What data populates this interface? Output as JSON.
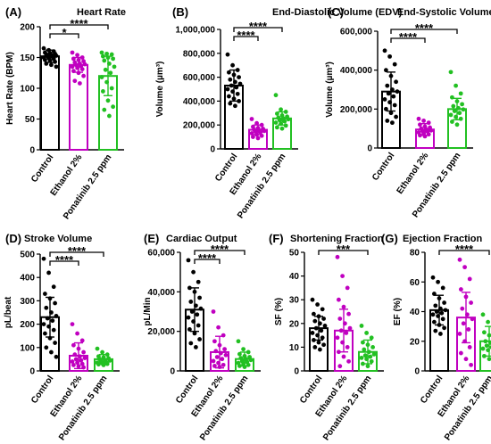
{
  "chart_data": [
    {
      "type": "bar",
      "panel": "(A)",
      "title": "Heart Rate",
      "ylabel": "Heart Rate (BPM)",
      "ylim": [
        0,
        200
      ],
      "yticks": [
        0,
        50,
        100,
        150,
        200
      ],
      "categories": [
        "Control",
        "Ethanol 2%",
        "Ponatinib 2.5 ppm"
      ],
      "values": [
        152,
        138,
        120
      ],
      "errors": [
        10,
        12,
        32
      ],
      "colors": [
        "#000000",
        "#c000c0",
        "#22c022"
      ],
      "points": [
        [
          165,
          162,
          160,
          158,
          157,
          156,
          155,
          154,
          153,
          152,
          151,
          150,
          149,
          148,
          146,
          145,
          143,
          140,
          138,
          135
        ],
        [
          158,
          154,
          150,
          148,
          146,
          144,
          142,
          140,
          139,
          138,
          136,
          135,
          133,
          131,
          128,
          125,
          120,
          112,
          108
        ],
        [
          158,
          156,
          155,
          152,
          150,
          148,
          145,
          140,
          135,
          130,
          125,
          118,
          110,
          100,
          95,
          80,
          70,
          65,
          55
        ]
      ],
      "significance": [
        {
          "from": 0,
          "to": 1,
          "label": "*"
        },
        {
          "from": 0,
          "to": 2,
          "label": "****"
        }
      ]
    },
    {
      "type": "bar",
      "panel": "(B)",
      "title": "End-Diastolic Volume (EDV)",
      "ylabel": "Volume (µm³)",
      "ylim": [
        0,
        1000000
      ],
      "yticks": [
        0,
        200000,
        400000,
        600000,
        800000,
        1000000
      ],
      "ytick_labels": [
        "0",
        "200,000",
        "400,000",
        "600,000",
        "800,000",
        "1,000,000"
      ],
      "categories": [
        "Control",
        "Ethanol 2%",
        "Ponatinib 2.5 ppm"
      ],
      "values": [
        530000,
        160000,
        255000
      ],
      "errors": [
        130000,
        40000,
        55000
      ],
      "colors": [
        "#000000",
        "#c000c0",
        "#22c022"
      ],
      "points": [
        [
          790000,
          700000,
          660000,
          640000,
          620000,
          600000,
          580000,
          560000,
          545000,
          530000,
          515000,
          500000,
          480000,
          460000,
          440000,
          420000,
          400000,
          380000,
          360000
        ],
        [
          250000,
          215000,
          200000,
          185000,
          175000,
          168000,
          160000,
          155000,
          150000,
          145000,
          140000,
          130000,
          120000,
          110000,
          100000,
          90000
        ],
        [
          450000,
          330000,
          310000,
          295000,
          280000,
          270000,
          262000,
          255000,
          248000,
          240000,
          230000,
          220000,
          210000,
          195000,
          180000,
          170000
        ]
      ],
      "significance": [
        {
          "from": 0,
          "to": 1,
          "label": "****"
        },
        {
          "from": 0,
          "to": 2,
          "label": "****"
        }
      ]
    },
    {
      "type": "bar",
      "panel": "(C)",
      "title": "End-Systolic Volume (ESV)",
      "ylabel": "Volume (µm³)",
      "ylim": [
        0,
        600000
      ],
      "yticks": [
        0,
        200000,
        400000,
        600000
      ],
      "ytick_labels": [
        "0",
        "200,000",
        "400,000",
        "600,000"
      ],
      "categories": [
        "Control",
        "Ethanol 2%",
        "Ponatinib 2.5 ppm"
      ],
      "values": [
        290000,
        95000,
        200000
      ],
      "errors": [
        100000,
        30000,
        55000
      ],
      "colors": [
        "#000000",
        "#c000c0",
        "#22c022"
      ],
      "points": [
        [
          500000,
          470000,
          430000,
          400000,
          370000,
          340000,
          320000,
          300000,
          290000,
          280000,
          265000,
          250000,
          235000,
          220000,
          200000,
          180000,
          160000,
          140000,
          130000
        ],
        [
          150000,
          140000,
          130000,
          120000,
          110000,
          105000,
          100000,
          95000,
          90000,
          88000,
          85000,
          80000,
          75000,
          70000,
          65000,
          60000
        ],
        [
          390000,
          320000,
          280000,
          260000,
          240000,
          225000,
          215000,
          205000,
          198000,
          190000,
          180000,
          170000,
          160000,
          150000,
          135000,
          120000
        ]
      ],
      "significance": [
        {
          "from": 0,
          "to": 1,
          "label": "****"
        },
        {
          "from": 0,
          "to": 2,
          "label": "****"
        }
      ]
    },
    {
      "type": "bar",
      "panel": "(D)",
      "title": "Stroke Volume",
      "ylabel": "pL/beat",
      "ylim": [
        0,
        500
      ],
      "yticks": [
        0,
        100,
        200,
        300,
        400,
        500
      ],
      "categories": [
        "Control",
        "Ethanol 2%",
        "Ponatinib 2.5 ppm"
      ],
      "values": [
        230,
        65,
        50
      ],
      "errors": [
        85,
        55,
        20
      ],
      "colors": [
        "#000000",
        "#c000c0",
        "#22c022"
      ],
      "points": [
        [
          480,
          420,
          360,
          330,
          310,
          290,
          270,
          250,
          235,
          225,
          215,
          200,
          190,
          175,
          160,
          140,
          120,
          100,
          80,
          60
        ],
        [
          200,
          160,
          130,
          110,
          95,
          80,
          70,
          62,
          55,
          50,
          45,
          40,
          35,
          30,
          25,
          20,
          15
        ],
        [
          95,
          80,
          70,
          62,
          58,
          54,
          50,
          47,
          44,
          40,
          38,
          35,
          32,
          30,
          28,
          25
        ]
      ],
      "significance": [
        {
          "from": 0,
          "to": 1,
          "label": "****"
        },
        {
          "from": 0,
          "to": 2,
          "label": "****"
        }
      ]
    },
    {
      "type": "bar",
      "panel": "(E)",
      "title": "Cardiac Output",
      "ylabel": "pL/Min",
      "ylim": [
        0,
        60000
      ],
      "yticks": [
        0,
        20000,
        40000,
        60000
      ],
      "ytick_labels": [
        "0",
        "20,000",
        "40,000",
        "60,000"
      ],
      "categories": [
        "Control",
        "Ethanol 2%",
        "Ponatinib 2.5 ppm"
      ],
      "values": [
        31000,
        9500,
        6000
      ],
      "errors": [
        11000,
        8000,
        3500
      ],
      "colors": [
        "#000000",
        "#c000c0",
        "#22c022"
      ],
      "points": [
        [
          56000,
          50000,
          45000,
          42000,
          40000,
          37000,
          35000,
          33000,
          31500,
          30000,
          28500,
          27000,
          25000,
          23000,
          21000,
          19000,
          16000,
          14000,
          12000
        ],
        [
          30000,
          22000,
          18000,
          15000,
          13000,
          11000,
          10000,
          9000,
          8000,
          7000,
          6000,
          5000,
          4000,
          3000,
          2500,
          2000
        ],
        [
          15000,
          11000,
          9500,
          8500,
          7500,
          7000,
          6500,
          6000,
          5500,
          5000,
          4500,
          4000,
          3500,
          3000,
          2500,
          2000
        ]
      ],
      "significance": [
        {
          "from": 0,
          "to": 1,
          "label": "****"
        },
        {
          "from": 0,
          "to": 2,
          "label": "****"
        }
      ]
    },
    {
      "type": "bar",
      "panel": "(F)",
      "title": "Shortening Fraction",
      "ylabel": "SF (%)",
      "ylim": [
        0,
        50
      ],
      "yticks": [
        0,
        10,
        20,
        30,
        40,
        50
      ],
      "categories": [
        "Control",
        "Ethanol 2%",
        "Ponatinib 2.5 ppm"
      ],
      "values": [
        18,
        17,
        8
      ],
      "errors": [
        5,
        9,
        5
      ],
      "colors": [
        "#000000",
        "#c000c0",
        "#22c022"
      ],
      "points": [
        [
          30,
          28,
          26,
          24,
          23,
          22,
          21,
          20,
          19,
          18,
          17,
          16,
          15,
          14,
          13,
          12,
          11,
          10,
          9
        ],
        [
          48,
          40,
          35,
          30,
          27,
          24,
          22,
          20,
          18,
          17,
          16,
          14,
          12,
          10,
          8,
          6,
          4,
          2
        ],
        [
          19,
          16,
          14,
          12,
          11,
          10,
          9,
          8,
          7,
          6.5,
          6,
          5.5,
          5,
          4,
          3,
          2
        ]
      ],
      "significance": [
        {
          "from": 0,
          "to": 2,
          "label": "***"
        }
      ]
    },
    {
      "type": "bar",
      "panel": "(G)",
      "title": "Ejection Fraction",
      "ylabel": "EF (%)",
      "ylim": [
        0,
        80
      ],
      "yticks": [
        0,
        20,
        40,
        60,
        80
      ],
      "categories": [
        "Control",
        "Ethanol 2%",
        "Ponatinib 2.5 ppm"
      ],
      "values": [
        41,
        36,
        20
      ],
      "errors": [
        10,
        17,
        10
      ],
      "colors": [
        "#000000",
        "#c000c0",
        "#22c022"
      ],
      "points": [
        [
          63,
          60,
          56,
          52,
          49,
          46,
          44,
          42,
          41,
          40,
          39,
          38,
          37,
          35,
          33,
          31,
          29,
          27,
          25
        ],
        [
          75,
          70,
          62,
          55,
          50,
          46,
          42,
          38,
          35,
          32,
          28,
          25,
          20,
          16,
          12,
          8,
          4
        ],
        [
          38,
          33,
          29,
          26,
          24,
          22,
          20,
          19,
          18,
          17,
          16,
          15,
          14,
          12,
          10,
          8
        ]
      ],
      "significance": [
        {
          "from": 0,
          "to": 2,
          "label": "****"
        }
      ]
    }
  ]
}
